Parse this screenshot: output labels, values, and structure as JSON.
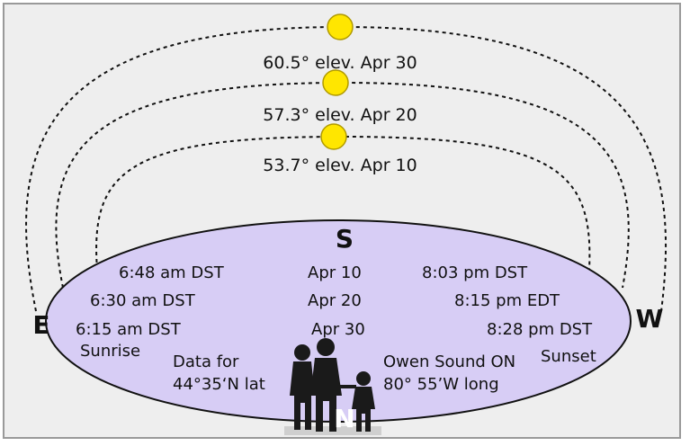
{
  "colors": {
    "panel": "#eeeeee",
    "border": "#999999",
    "horizon_fill": "#d7cdf5",
    "sun_fill": "#ffe600",
    "sun_stroke": "#b09a00",
    "figures": "#1a1a1a"
  },
  "arcs": [
    {
      "label": "60.5° elev. Apr 30"
    },
    {
      "label": "57.3° elev. Apr 20"
    },
    {
      "label": "53.7° elev. Apr 10"
    }
  ],
  "directions": {
    "south": "S",
    "east": "E",
    "west": "W",
    "north": "N"
  },
  "times": {
    "row1": {
      "sunrise": "6:48  am DST",
      "date": "Apr  10",
      "sunset": "8:03 pm DST"
    },
    "row2": {
      "sunrise": "6:30 am DST",
      "date": "Apr  20",
      "sunset": "8:15 pm EDT"
    },
    "row3": {
      "sunrise": "6:15 am DST",
      "date": "Apr  30",
      "sunset": "8:28 pm DST"
    }
  },
  "labels": {
    "sunrise": "Sunrise",
    "sunset": "Sunset",
    "data_for": "Data for",
    "latitude": "44°35‘N lat",
    "location": "Owen Sound ON",
    "longitude": "80° 55’W long"
  },
  "icons": [
    "sun-icon",
    "family-silhouette-icon"
  ]
}
